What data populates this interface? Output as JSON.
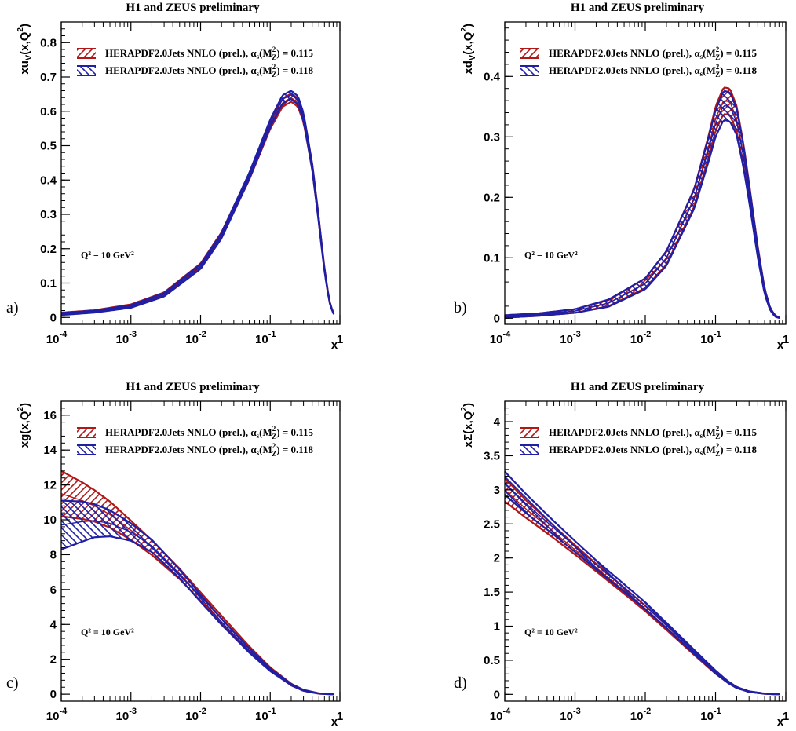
{
  "figure": {
    "colors": {
      "red": "#b01818",
      "blue": "#1f1fa6",
      "axis": "#000000",
      "background": "#ffffff"
    }
  },
  "chart_data": [
    {
      "type": "area",
      "panel_label": "a)",
      "title": "H1 and ZEUS preliminary",
      "xlabel": "x",
      "ylabel": "xu_V(x,Q^2)",
      "x_scale": "log",
      "xlim": [
        0.0001,
        1
      ],
      "ylim": [
        -0.02,
        0.86
      ],
      "x_ticks": [
        {
          "v": 0.0001,
          "base": "10",
          "exp": "-4"
        },
        {
          "v": 0.001,
          "base": "10",
          "exp": "-3"
        },
        {
          "v": 0.01,
          "base": "10",
          "exp": "-2"
        },
        {
          "v": 0.1,
          "base": "10",
          "exp": "-1"
        },
        {
          "v": 1,
          "base": "1",
          "exp": ""
        }
      ],
      "y_ticks": [
        0,
        0.1,
        0.2,
        0.3,
        0.4,
        0.5,
        0.6,
        0.7,
        0.8
      ],
      "y_tick_labels": [
        "0",
        "0.1",
        "0.2",
        "0.3",
        "0.4",
        "0.5",
        "0.6",
        "0.7",
        "0.8"
      ],
      "annotation": "Q² = 10 GeV²",
      "legend": [
        {
          "name": "HERAPDF2.0Jets NNLO (prel.), α",
          "alpha": "0.115",
          "color": "red",
          "hatch": "/"
        },
        {
          "name": "HERAPDF2.0Jets NNLO (prel.), α",
          "alpha": "0.118",
          "color": "blue",
          "hatch": "\\"
        }
      ],
      "series": [
        {
          "name": "α_s = 0.115",
          "color": "red",
          "x": [
            0.0001,
            0.0003,
            0.001,
            0.003,
            0.01,
            0.02,
            0.05,
            0.1,
            0.15,
            0.2,
            0.25,
            0.3,
            0.4,
            0.5,
            0.6,
            0.7,
            0.8,
            0.9
          ],
          "central": [
            0.011,
            0.018,
            0.034,
            0.068,
            0.15,
            0.24,
            0.41,
            0.56,
            0.625,
            0.64,
            0.625,
            0.58,
            0.44,
            0.28,
            0.14,
            0.05,
            0.012,
            0.001
          ],
          "width": [
            0.003,
            0.003,
            0.004,
            0.005,
            0.007,
            0.008,
            0.009,
            0.011,
            0.012,
            0.012,
            0.012,
            0.011,
            0.009,
            0.007,
            0.004,
            0.002,
            0.001,
            0.0005
          ]
        },
        {
          "name": "α_s = 0.118",
          "color": "blue",
          "x": [
            0.0001,
            0.0003,
            0.001,
            0.003,
            0.01,
            0.02,
            0.05,
            0.1,
            0.15,
            0.2,
            0.25,
            0.3,
            0.4,
            0.5,
            0.6,
            0.7,
            0.8,
            0.9
          ],
          "central": [
            0.01,
            0.017,
            0.032,
            0.066,
            0.148,
            0.238,
            0.412,
            0.565,
            0.635,
            0.648,
            0.632,
            0.585,
            0.44,
            0.278,
            0.138,
            0.049,
            0.012,
            0.001
          ],
          "width": [
            0.003,
            0.003,
            0.004,
            0.005,
            0.007,
            0.008,
            0.009,
            0.011,
            0.012,
            0.012,
            0.012,
            0.011,
            0.009,
            0.007,
            0.004,
            0.002,
            0.001,
            0.0005
          ]
        }
      ]
    },
    {
      "type": "area",
      "panel_label": "b)",
      "title": "H1 and ZEUS preliminary",
      "xlabel": "x",
      "ylabel": "xd_V(x,Q^2)",
      "x_scale": "log",
      "xlim": [
        0.0001,
        1
      ],
      "ylim": [
        -0.01,
        0.49
      ],
      "x_ticks": [
        {
          "v": 0.0001,
          "base": "10",
          "exp": "-4"
        },
        {
          "v": 0.001,
          "base": "10",
          "exp": "-3"
        },
        {
          "v": 0.01,
          "base": "10",
          "exp": "-2"
        },
        {
          "v": 0.1,
          "base": "10",
          "exp": "-1"
        },
        {
          "v": 1,
          "base": "1",
          "exp": ""
        }
      ],
      "y_ticks": [
        0,
        0.1,
        0.2,
        0.3,
        0.4
      ],
      "y_tick_labels": [
        "0",
        "0.1",
        "0.2",
        "0.3",
        "0.4"
      ],
      "annotation": "Q² = 10 GeV²",
      "legend": [
        {
          "name": "HERAPDF2.0Jets NNLO (prel.), α",
          "alpha": "0.115",
          "color": "red",
          "hatch": "/"
        },
        {
          "name": "HERAPDF2.0Jets NNLO (prel.), α",
          "alpha": "0.118",
          "color": "blue",
          "hatch": "\\"
        }
      ],
      "series": [
        {
          "name": "α_s = 0.115",
          "color": "red",
          "x": [
            0.0001,
            0.0003,
            0.001,
            0.003,
            0.01,
            0.02,
            0.05,
            0.08,
            0.1,
            0.13,
            0.16,
            0.2,
            0.25,
            0.3,
            0.4,
            0.5,
            0.6,
            0.7,
            0.8,
            0.9
          ],
          "central": [
            0.003,
            0.006,
            0.012,
            0.025,
            0.058,
            0.1,
            0.2,
            0.285,
            0.33,
            0.36,
            0.358,
            0.33,
            0.27,
            0.21,
            0.11,
            0.045,
            0.015,
            0.004,
            0.001,
            0.0002
          ],
          "width": [
            0.002,
            0.002,
            0.003,
            0.005,
            0.008,
            0.011,
            0.015,
            0.018,
            0.02,
            0.022,
            0.022,
            0.021,
            0.018,
            0.014,
            0.008,
            0.004,
            0.002,
            0.001,
            0.0005,
            0.0002
          ]
        },
        {
          "name": "α_s = 0.118",
          "color": "blue",
          "x": [
            0.0001,
            0.0003,
            0.001,
            0.003,
            0.01,
            0.02,
            0.05,
            0.08,
            0.1,
            0.13,
            0.16,
            0.2,
            0.25,
            0.3,
            0.4,
            0.5,
            0.6,
            0.7,
            0.8,
            0.9
          ],
          "central": [
            0.003,
            0.006,
            0.012,
            0.025,
            0.057,
            0.099,
            0.198,
            0.28,
            0.322,
            0.352,
            0.35,
            0.325,
            0.267,
            0.208,
            0.108,
            0.044,
            0.015,
            0.004,
            0.001,
            0.0002
          ],
          "width": [
            0.002,
            0.002,
            0.003,
            0.006,
            0.009,
            0.012,
            0.016,
            0.02,
            0.022,
            0.024,
            0.024,
            0.022,
            0.018,
            0.014,
            0.008,
            0.004,
            0.002,
            0.001,
            0.0005,
            0.0002
          ]
        }
      ]
    },
    {
      "type": "area",
      "panel_label": "c)",
      "title": "H1 and ZEUS preliminary",
      "xlabel": "x",
      "ylabel": "xg(x,Q^2)",
      "x_scale": "log",
      "xlim": [
        0.0001,
        1
      ],
      "ylim": [
        -0.4,
        16.8
      ],
      "x_ticks": [
        {
          "v": 0.0001,
          "base": "10",
          "exp": "-4"
        },
        {
          "v": 0.001,
          "base": "10",
          "exp": "-3"
        },
        {
          "v": 0.01,
          "base": "10",
          "exp": "-2"
        },
        {
          "v": 0.1,
          "base": "10",
          "exp": "-1"
        },
        {
          "v": 1,
          "base": "1",
          "exp": ""
        }
      ],
      "y_ticks": [
        0,
        2,
        4,
        6,
        8,
        10,
        12,
        14,
        16
      ],
      "y_tick_labels": [
        "0",
        "2",
        "4",
        "6",
        "8",
        "10",
        "12",
        "14",
        "16"
      ],
      "annotation": "Q² = 10 GeV²",
      "legend": [
        {
          "name": "HERAPDF2.0Jets NNLO (prel.), α",
          "alpha": "0.115",
          "color": "red",
          "hatch": "/"
        },
        {
          "name": "HERAPDF2.0Jets NNLO (prel.), α",
          "alpha": "0.118",
          "color": "blue",
          "hatch": "\\"
        }
      ],
      "series": [
        {
          "name": "α_s = 0.115",
          "color": "red",
          "x": [
            0.0001,
            0.0002,
            0.0003,
            0.0005,
            0.001,
            0.002,
            0.005,
            0.01,
            0.02,
            0.05,
            0.1,
            0.2,
            0.3,
            0.5,
            0.7,
            0.9
          ],
          "central": [
            11.5,
            11.1,
            10.8,
            10.3,
            9.4,
            8.4,
            6.9,
            5.6,
            4.3,
            2.6,
            1.45,
            0.55,
            0.22,
            0.04,
            0.005,
            0.0
          ],
          "width": [
            1.3,
            1.05,
            0.9,
            0.75,
            0.55,
            0.42,
            0.3,
            0.24,
            0.2,
            0.14,
            0.09,
            0.05,
            0.03,
            0.01,
            0.002,
            0.0
          ]
        },
        {
          "name": "α_s = 0.118",
          "color": "blue",
          "x": [
            0.0001,
            0.0002,
            0.0003,
            0.0005,
            0.001,
            0.002,
            0.005,
            0.01,
            0.02,
            0.05,
            0.1,
            0.2,
            0.3,
            0.5,
            0.7,
            0.9
          ],
          "central": [
            9.7,
            9.9,
            9.95,
            9.8,
            9.3,
            8.5,
            6.9,
            5.5,
            4.15,
            2.5,
            1.4,
            0.55,
            0.22,
            0.04,
            0.005,
            0.0
          ],
          "width": [
            1.4,
            1.15,
            0.95,
            0.75,
            0.5,
            0.35,
            0.25,
            0.2,
            0.17,
            0.12,
            0.08,
            0.04,
            0.025,
            0.01,
            0.002,
            0.0
          ]
        }
      ]
    },
    {
      "type": "area",
      "panel_label": "d)",
      "title": "H1 and ZEUS preliminary",
      "xlabel": "x",
      "ylabel": "xΣ(x,Q^2)",
      "x_scale": "log",
      "xlim": [
        0.0001,
        1
      ],
      "ylim": [
        -0.1,
        4.3
      ],
      "x_ticks": [
        {
          "v": 0.0001,
          "base": "10",
          "exp": "-4"
        },
        {
          "v": 0.001,
          "base": "10",
          "exp": "-3"
        },
        {
          "v": 0.01,
          "base": "10",
          "exp": "-2"
        },
        {
          "v": 0.1,
          "base": "10",
          "exp": "-1"
        },
        {
          "v": 1,
          "base": "1",
          "exp": ""
        }
      ],
      "y_ticks": [
        0,
        0.5,
        1,
        1.5,
        2,
        2.5,
        3,
        3.5,
        4
      ],
      "y_tick_labels": [
        "0",
        "0.5",
        "1",
        "1.5",
        "2",
        "2.5",
        "3",
        "3.5",
        "4"
      ],
      "annotation": "Q² = 10 GeV²",
      "legend": [
        {
          "name": "HERAPDF2.0Jets NNLO (prel.), α",
          "alpha": "0.115",
          "color": "red",
          "hatch": "/"
        },
        {
          "name": "HERAPDF2.0Jets NNLO (prel.), α",
          "alpha": "0.118",
          "color": "blue",
          "hatch": "\\"
        }
      ],
      "series": [
        {
          "name": "α_s = 0.115",
          "color": "red",
          "x": [
            0.0001,
            0.0002,
            0.0005,
            0.001,
            0.002,
            0.005,
            0.01,
            0.02,
            0.05,
            0.1,
            0.15,
            0.2,
            0.3,
            0.5,
            0.7,
            0.9
          ],
          "central": [
            3.0,
            2.72,
            2.38,
            2.12,
            1.86,
            1.52,
            1.26,
            0.98,
            0.6,
            0.32,
            0.18,
            0.1,
            0.04,
            0.01,
            0.003,
            0.001
          ],
          "width": [
            0.17,
            0.13,
            0.09,
            0.07,
            0.055,
            0.045,
            0.04,
            0.035,
            0.025,
            0.018,
            0.012,
            0.008,
            0.004,
            0.002,
            0.001,
            0.0005
          ]
        },
        {
          "name": "α_s = 0.118",
          "color": "blue",
          "x": [
            0.0001,
            0.0002,
            0.0005,
            0.001,
            0.002,
            0.005,
            0.01,
            0.02,
            0.05,
            0.1,
            0.15,
            0.2,
            0.3,
            0.5,
            0.7,
            0.9
          ],
          "central": [
            3.1,
            2.8,
            2.44,
            2.17,
            1.9,
            1.56,
            1.3,
            1.01,
            0.62,
            0.33,
            0.18,
            0.1,
            0.04,
            0.01,
            0.003,
            0.001
          ],
          "width": [
            0.17,
            0.14,
            0.1,
            0.08,
            0.065,
            0.055,
            0.05,
            0.04,
            0.03,
            0.02,
            0.013,
            0.008,
            0.004,
            0.002,
            0.001,
            0.0005
          ]
        }
      ]
    }
  ]
}
